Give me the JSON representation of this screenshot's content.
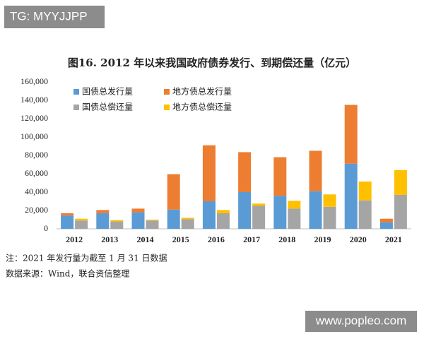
{
  "watermark_top": "TG: MYYJJPP",
  "watermark_bottom": "www.popleo.com",
  "chart_data": {
    "type": "bar",
    "title": "图16.   2012 年以来我国政府债券发行、到期偿还量（亿元）",
    "categories": [
      "2012",
      "2013",
      "2014",
      "2015",
      "2016",
      "2017",
      "2018",
      "2019",
      "2020",
      "2021"
    ],
    "series": [
      {
        "name": "国债总发行量",
        "color": "#5b9bd5",
        "values": [
          14500,
          17000,
          18000,
          21000,
          30000,
          40000,
          36000,
          41000,
          71000,
          7000
        ]
      },
      {
        "name": "地方债总发行量",
        "color": "#ed7d31",
        "values": [
          2500,
          3500,
          4000,
          38500,
          61000,
          43500,
          42000,
          44000,
          64000,
          4000
        ]
      },
      {
        "name": "国债总偿还量",
        "color": "#a5a5a5",
        "values": [
          9000,
          8000,
          9000,
          10500,
          17000,
          25000,
          22000,
          24000,
          31000,
          37000
        ]
      },
      {
        "name": "地方债总偿还量",
        "color": "#ffc000",
        "values": [
          2000,
          1500,
          1000,
          1500,
          3500,
          2500,
          8500,
          13500,
          20500,
          27000
        ]
      }
    ],
    "ylim": [
      0,
      160000
    ],
    "yticks": [
      0,
      {
        "value": 20000,
        "label": "20,000"
      },
      {
        "value": 40000,
        "label": "40,000"
      },
      {
        "value": 60000,
        "label": "60,000"
      },
      {
        "value": 80000,
        "label": "80,000"
      },
      {
        "value": 100000,
        "label": "100,000"
      },
      {
        "value": 120000,
        "label": "120,000"
      },
      {
        "value": 140000,
        "label": "140,000"
      },
      {
        "value": 160000,
        "label": "160,000"
      }
    ],
    "grid": false,
    "legend": "upper left",
    "notes": [
      "注：2021 年发行量为截至 1 月 31 日数据",
      "数据来源：Wind，联合资信整理"
    ]
  }
}
